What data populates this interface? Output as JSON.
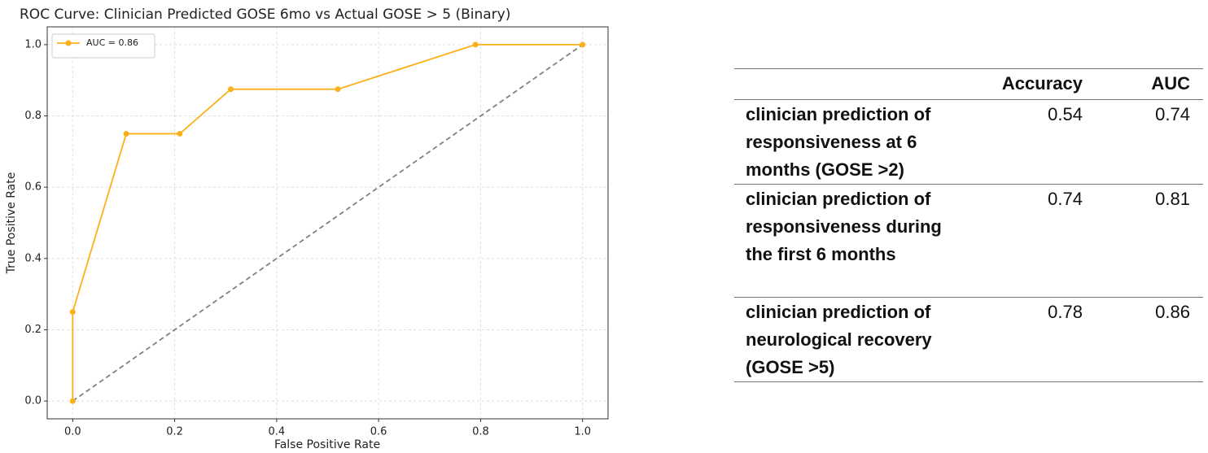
{
  "chart_data": {
    "type": "line",
    "title": "ROC Curve: Clinician Predicted GOSE 6mo vs Actual GOSE > 5 (Binary)",
    "x_label": "False Positive Rate",
    "y_label": "True Positive Rate",
    "series": [
      {
        "name": "AUC = 0.86",
        "color": "#fbb01b",
        "marker": "circle",
        "x": [
          0,
          0,
          0.105,
          0.21,
          0.31,
          0.52,
          0.79,
          1.0
        ],
        "values": [
          0,
          0.25,
          0.75,
          0.75,
          0.875,
          0.875,
          1.0,
          1.0
        ]
      },
      {
        "color": "#808080",
        "linestyle": "dashed",
        "x": [
          0,
          1
        ],
        "values": [
          0,
          1
        ]
      }
    ],
    "xlim": [
      -0.05,
      1.05
    ],
    "ylim": [
      -0.05,
      1.05
    ],
    "xticks": [
      {
        "value": 0,
        "label": "0.0"
      },
      {
        "value": 0.2,
        "label": "0.2"
      },
      {
        "value": 0.4,
        "label": "0.4"
      },
      {
        "value": 0.6,
        "label": "0.6"
      },
      {
        "value": 0.8,
        "label": "0.8"
      },
      {
        "value": 1,
        "label": "1.0"
      }
    ],
    "yticks": [
      {
        "value": 0,
        "label": "0.0"
      },
      {
        "value": 0.2,
        "label": "0.2"
      },
      {
        "value": 0.4,
        "label": "0.4"
      },
      {
        "value": 0.6,
        "label": "0.6"
      },
      {
        "value": 0.8,
        "label": "0.8"
      },
      {
        "value": 1,
        "label": "1.0"
      }
    ],
    "grid": true,
    "legend": "upper left"
  },
  "table": {
    "columns": [
      "Accuracy",
      "AUC"
    ],
    "rows": [
      {
        "label": "clinician prediction of responsiveness at 6 months (GOSE >2)",
        "values": [
          0.54,
          0.74
        ]
      },
      {
        "label": "clinician prediction of responsiveness during the first 6 months",
        "values": [
          0.74,
          0.81
        ]
      },
      {
        "label": "clinician prediction of neurological recovery (GOSE >5)",
        "values": [
          0.78,
          0.86
        ]
      }
    ]
  }
}
